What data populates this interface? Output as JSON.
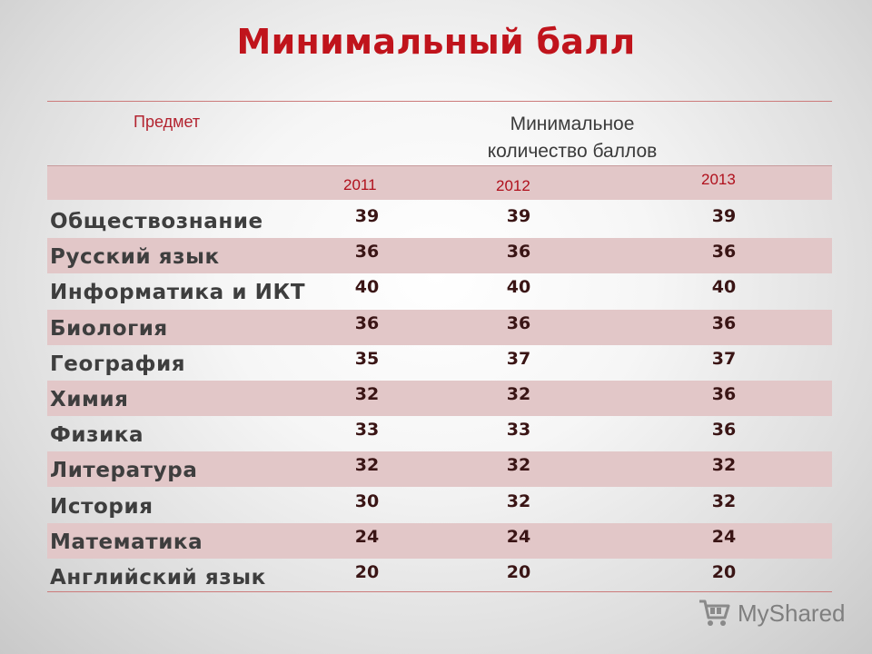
{
  "title": "Минимальный балл",
  "table": {
    "header_subject": "Предмет",
    "header_min_line1": "Минимальное",
    "header_min_line2": "количество баллов",
    "years": [
      "2011",
      "2012",
      "2013"
    ],
    "rows": [
      {
        "subject": "Обществознание",
        "values": [
          "39",
          "39",
          "39"
        ]
      },
      {
        "subject": "Русский язык",
        "values": [
          "36",
          "36",
          "36"
        ]
      },
      {
        "subject": "Информатика и ИКТ",
        "values": [
          "40",
          "40",
          "40"
        ]
      },
      {
        "subject": "Биология",
        "values": [
          "36",
          "36",
          "36"
        ]
      },
      {
        "subject": "География",
        "values": [
          "35",
          "37",
          "37"
        ]
      },
      {
        "subject": "Химия",
        "values": [
          "32",
          "32",
          "36"
        ]
      },
      {
        "subject": "Физика",
        "values": [
          "33",
          "33",
          "36"
        ]
      },
      {
        "subject": "Литература",
        "values": [
          "32",
          "32",
          "32"
        ]
      },
      {
        "subject": "История",
        "values": [
          "30",
          "32",
          "32"
        ]
      },
      {
        "subject": "Математика",
        "values": [
          "24",
          "24",
          "24"
        ]
      },
      {
        "subject": "Английский язык",
        "values": [
          "20",
          "20",
          "20"
        ]
      }
    ]
  },
  "watermark": {
    "text": "MyShared",
    "icon": "shopping-cart-icon"
  },
  "colors": {
    "title": "#c0141c",
    "row_band": "#e2c7c8",
    "year_text": "#b0101c"
  }
}
